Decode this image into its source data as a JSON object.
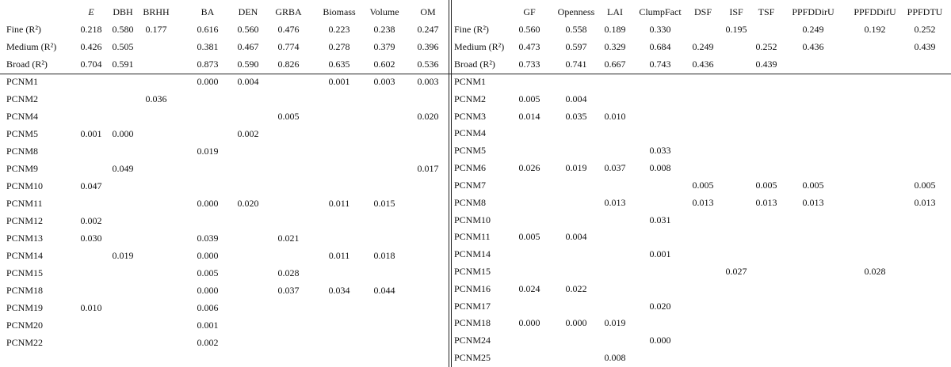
{
  "tables": [
    {
      "columns": [
        "E",
        "DBH",
        "BRHH",
        "BA",
        "DEN",
        "GRBA",
        "Biomass",
        "Volume",
        "OM"
      ],
      "fit_rows": [
        {
          "label": "Fine (R²)",
          "values": [
            "0.218",
            "0.580",
            "0.177",
            "0.616",
            "0.560",
            "0.476",
            "0.223",
            "0.238",
            "0.247"
          ]
        },
        {
          "label": "Medium (R²)",
          "values": [
            "0.426",
            "0.505",
            null,
            "0.381",
            "0.467",
            "0.774",
            "0.278",
            "0.379",
            "0.396"
          ]
        },
        {
          "label": "Broad (R²)",
          "values": [
            "0.704",
            "0.591",
            null,
            "0.873",
            "0.590",
            "0.826",
            "0.635",
            "0.602",
            "0.536"
          ]
        }
      ],
      "rows": [
        {
          "label": "PCNM1",
          "values": [
            null,
            null,
            null,
            "0.000",
            "0.004",
            null,
            "0.001",
            "0.003",
            "0.003"
          ]
        },
        {
          "label": "PCNM2",
          "values": [
            null,
            null,
            "0.036",
            null,
            null,
            null,
            null,
            null,
            null
          ]
        },
        {
          "label": "PCNM4",
          "values": [
            null,
            null,
            null,
            null,
            null,
            "0.005",
            null,
            null,
            "0.020"
          ]
        },
        {
          "label": "PCNM5",
          "values": [
            "0.001",
            "0.000",
            null,
            null,
            "0.002",
            null,
            null,
            null,
            null
          ]
        },
        {
          "label": "PCNM8",
          "values": [
            null,
            null,
            null,
            "0.019",
            null,
            null,
            null,
            null,
            null
          ]
        },
        {
          "label": "PCNM9",
          "values": [
            null,
            "0.049",
            null,
            null,
            null,
            null,
            null,
            null,
            "0.017"
          ]
        },
        {
          "label": "PCNM10",
          "values": [
            "0.047",
            null,
            null,
            null,
            null,
            null,
            null,
            null,
            null
          ]
        },
        {
          "label": "PCNM11",
          "values": [
            null,
            null,
            null,
            "0.000",
            "0.020",
            null,
            "0.011",
            "0.015",
            null
          ]
        },
        {
          "label": "PCNM12",
          "values": [
            "0.002",
            null,
            null,
            null,
            null,
            null,
            null,
            null,
            null
          ]
        },
        {
          "label": "PCNM13",
          "values": [
            "0.030",
            null,
            null,
            "0.039",
            null,
            "0.021",
            null,
            null,
            null
          ]
        },
        {
          "label": "PCNM14",
          "values": [
            null,
            "0.019",
            null,
            "0.000",
            null,
            null,
            "0.011",
            "0.018",
            null
          ]
        },
        {
          "label": "PCNM15",
          "values": [
            null,
            null,
            null,
            "0.005",
            null,
            "0.028",
            null,
            null,
            null
          ]
        },
        {
          "label": "PCNM18",
          "values": [
            null,
            null,
            null,
            "0.000",
            null,
            "0.037",
            "0.034",
            "0.044",
            null
          ]
        },
        {
          "label": "PCNM19",
          "values": [
            "0.010",
            null,
            null,
            "0.006",
            null,
            null,
            null,
            null,
            null
          ]
        },
        {
          "label": "PCNM20",
          "values": [
            null,
            null,
            null,
            "0.001",
            null,
            null,
            null,
            null,
            null
          ]
        },
        {
          "label": "PCNM22",
          "values": [
            null,
            null,
            null,
            "0.002",
            null,
            null,
            null,
            null,
            null
          ]
        }
      ]
    },
    {
      "columns": [
        "GF",
        "Openness",
        "LAI",
        "ClumpFact",
        "DSF",
        "ISF",
        "TSF",
        "PPFDDirU",
        "PPFDDifU",
        "PPFDTU"
      ],
      "fit_rows": [
        {
          "label": "Fine (R²)",
          "values": [
            "0.560",
            "0.558",
            "0.189",
            "0.330",
            null,
            "0.195",
            null,
            "0.249",
            "0.192",
            "0.252"
          ]
        },
        {
          "label": "Medium (R²)",
          "values": [
            "0.473",
            "0.597",
            "0.329",
            "0.684",
            "0.249",
            null,
            "0.252",
            "0.436",
            null,
            "0.439"
          ]
        },
        {
          "label": "Broad (R²)",
          "values": [
            "0.733",
            "0.741",
            "0.667",
            "0.743",
            "0.436",
            null,
            "0.439",
            null,
            null,
            null
          ]
        }
      ],
      "rows": [
        {
          "label": "PCNM1",
          "values": [
            null,
            null,
            null,
            null,
            null,
            null,
            null,
            null,
            null,
            null
          ]
        },
        {
          "label": "PCNM2",
          "values": [
            "0.005",
            "0.004",
            null,
            null,
            null,
            null,
            null,
            null,
            null,
            null
          ]
        },
        {
          "label": "PCNM3",
          "values": [
            "0.014",
            "0.035",
            "0.010",
            null,
            null,
            null,
            null,
            null,
            null,
            null
          ]
        },
        {
          "label": "PCNM4",
          "values": [
            null,
            null,
            null,
            null,
            null,
            null,
            null,
            null,
            null,
            null
          ]
        },
        {
          "label": "PCNM5",
          "values": [
            null,
            null,
            null,
            "0.033",
            null,
            null,
            null,
            null,
            null,
            null
          ]
        },
        {
          "label": "PCNM6",
          "values": [
            "0.026",
            "0.019",
            "0.037",
            "0.008",
            null,
            null,
            null,
            null,
            null,
            null
          ]
        },
        {
          "label": "PCNM7",
          "values": [
            null,
            null,
            null,
            null,
            "0.005",
            null,
            "0.005",
            "0.005",
            null,
            "0.005"
          ]
        },
        {
          "label": "PCNM8",
          "values": [
            null,
            null,
            "0.013",
            null,
            "0.013",
            null,
            "0.013",
            "0.013",
            null,
            "0.013"
          ]
        },
        {
          "label": "PCNM10",
          "values": [
            null,
            null,
            null,
            "0.031",
            null,
            null,
            null,
            null,
            null,
            null
          ]
        },
        {
          "label": "PCNM11",
          "values": [
            "0.005",
            "0.004",
            null,
            null,
            null,
            null,
            null,
            null,
            null,
            null
          ]
        },
        {
          "label": "PCNM14",
          "values": [
            null,
            null,
            null,
            "0.001",
            null,
            null,
            null,
            null,
            null,
            null
          ]
        },
        {
          "label": "PCNM15",
          "values": [
            null,
            null,
            null,
            null,
            null,
            "0.027",
            null,
            null,
            "0.028",
            null
          ]
        },
        {
          "label": "PCNM16",
          "values": [
            "0.024",
            "0.022",
            null,
            null,
            null,
            null,
            null,
            null,
            null,
            null
          ]
        },
        {
          "label": "PCNM17",
          "values": [
            null,
            null,
            null,
            "0.020",
            null,
            null,
            null,
            null,
            null,
            null
          ]
        },
        {
          "label": "PCNM18",
          "values": [
            "0.000",
            "0.000",
            "0.019",
            null,
            null,
            null,
            null,
            null,
            null,
            null
          ]
        },
        {
          "label": "PCNM24",
          "values": [
            null,
            null,
            null,
            "0.000",
            null,
            null,
            null,
            null,
            null,
            null
          ]
        },
        {
          "label": "PCNM25",
          "values": [
            null,
            null,
            "0.008",
            null,
            null,
            null,
            null,
            null,
            null,
            null
          ]
        }
      ]
    }
  ]
}
